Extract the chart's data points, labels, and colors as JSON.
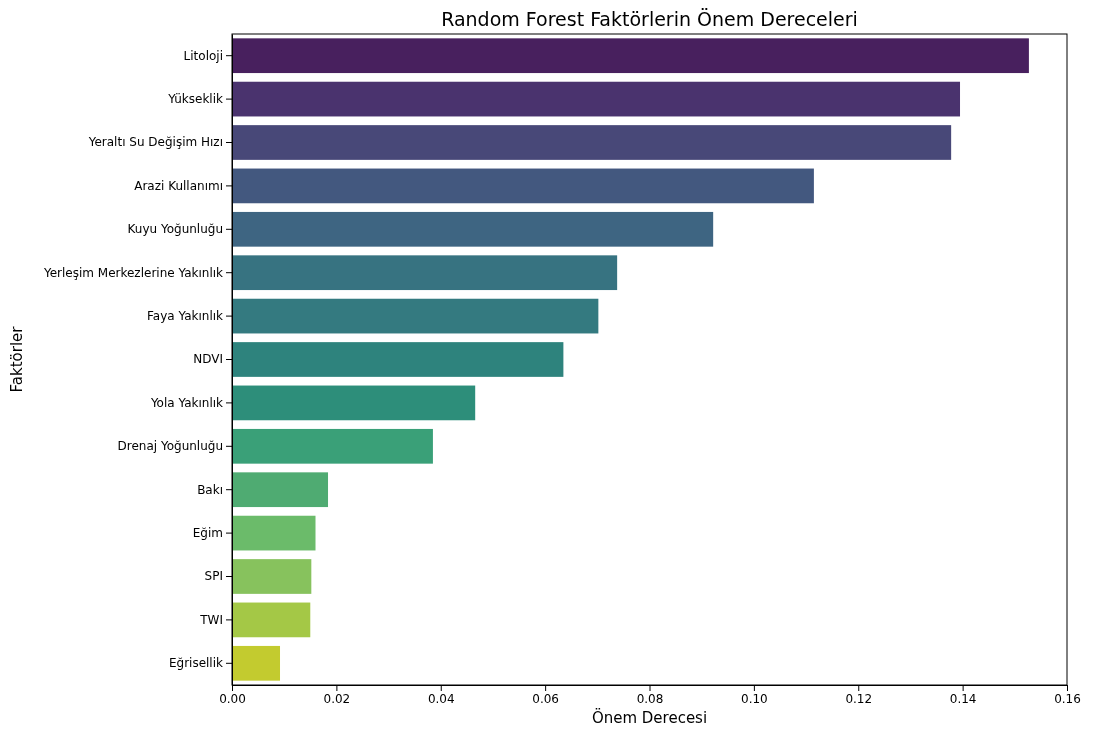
{
  "chart_data": {
    "type": "bar",
    "orientation": "horizontal",
    "title": "Random Forest Faktörlerin Önem Dereceleri",
    "xlabel": "Önem Derecesi",
    "ylabel": "Faktörler",
    "categories": [
      "Litoloji",
      "Yükseklik",
      "Yeraltı Su Değişim Hızı",
      "Arazi Kullanımı",
      "Kuyu Yoğunluğu",
      "Yerleşim Merkezlerine Yakınlık",
      "Faya Yakınlık",
      "NDVI",
      "Yola Yakınlık",
      "Drenaj Yoğunluğu",
      "Bakı",
      "Eğim",
      "SPI",
      "TWI",
      "Eğrisellik"
    ],
    "values": [
      0.1527,
      0.1395,
      0.1378,
      0.1115,
      0.0922,
      0.0738,
      0.0702,
      0.0635,
      0.0466,
      0.0385,
      0.0184,
      0.016,
      0.0152,
      0.015,
      0.0092
    ],
    "colors": [
      "#48205e",
      "#4a336e",
      "#484878",
      "#43587f",
      "#3e6582",
      "#377381",
      "#347a80",
      "#2e837d",
      "#2d8e7a",
      "#3aa078",
      "#4fab72",
      "#6bbb6a",
      "#87c25d",
      "#a4c846",
      "#c3cb2f"
    ],
    "xlim": [
      0,
      0.16
    ],
    "xticks": [
      {
        "value": 0,
        "label": "0.00"
      },
      0.02,
      0.04,
      0.06,
      0.08,
      {
        "value": 0.1,
        "label": "0.10"
      },
      0.12,
      0.14,
      0.16
    ]
  }
}
